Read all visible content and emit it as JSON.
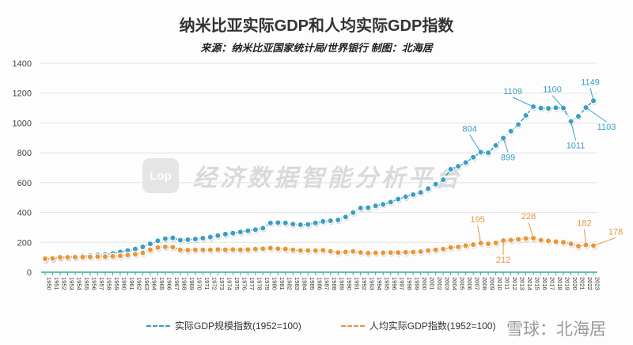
{
  "chart_data": {
    "type": "line",
    "title": "纳米比亚实际GDP和人均实际GDP指数",
    "subtitle": "来源：纳米比亚国家统计局/世界银行 制图：北海居",
    "xlabel": "",
    "ylabel": "",
    "ylim": [
      0,
      1400
    ],
    "yticks": [
      "0",
      "200",
      "400",
      "600",
      "800",
      "1000",
      "1200",
      "1400"
    ],
    "grid": true,
    "legend_position": "bottom",
    "x": [
      1950,
      1951,
      1952,
      1953,
      1954,
      1955,
      1956,
      1957,
      1958,
      1959,
      1960,
      1961,
      1962,
      1963,
      1964,
      1965,
      1966,
      1967,
      1968,
      1969,
      1970,
      1971,
      1972,
      1973,
      1974,
      1975,
      1976,
      1977,
      1978,
      1979,
      1980,
      1981,
      1982,
      1983,
      1984,
      1985,
      1986,
      1987,
      1988,
      1989,
      1990,
      1991,
      1992,
      1993,
      1994,
      1995,
      1996,
      1997,
      1998,
      1999,
      2000,
      2001,
      2002,
      2003,
      2004,
      2005,
      2006,
      2007,
      2008,
      2009,
      2010,
      2011,
      2012,
      2013,
      2014,
      2015,
      2016,
      2017,
      2018,
      2019,
      2020,
      2021,
      2022,
      2023
    ],
    "series": [
      {
        "name": "实际GDP规模指数(1952=100)",
        "color": "#3a9ec4",
        "values": [
          85,
          92,
          100,
          103,
          106,
          110,
          113,
          116,
          118,
          125,
          135,
          145,
          155,
          170,
          190,
          210,
          225,
          230,
          215,
          218,
          222,
          228,
          235,
          245,
          255,
          262,
          270,
          278,
          285,
          295,
          330,
          332,
          330,
          322,
          318,
          320,
          330,
          340,
          345,
          350,
          370,
          400,
          430,
          432,
          445,
          455,
          470,
          490,
          505,
          520,
          535,
          560,
          590,
          620,
          690,
          710,
          735,
          770,
          804,
          800,
          850,
          899,
          945,
          990,
          1050,
          1109,
          1100,
          1098,
          1102,
          1100,
          1011,
          1045,
          1103,
          1149
        ]
      },
      {
        "name": "人均实际GDP指数(1952=100)",
        "color": "#e8963a",
        "values": [
          90,
          92,
          100,
          100,
          101,
          102,
          103,
          104,
          105,
          107,
          110,
          115,
          120,
          130,
          150,
          165,
          170,
          168,
          150,
          148,
          150,
          150,
          150,
          152,
          150,
          152,
          150,
          152,
          155,
          158,
          162,
          158,
          155,
          150,
          145,
          145,
          145,
          147,
          140,
          132,
          135,
          140,
          132,
          128,
          130,
          130,
          132,
          132,
          133,
          135,
          138,
          145,
          150,
          155,
          165,
          170,
          178,
          185,
          195,
          190,
          196,
          212,
          215,
          220,
          226,
          228,
          215,
          210,
          205,
          200,
          190,
          175,
          182,
          178
        ]
      }
    ],
    "annotations": [
      {
        "series": 0,
        "year": 2008,
        "label": "804"
      },
      {
        "series": 0,
        "year": 2011,
        "label": "899"
      },
      {
        "series": 0,
        "year": 2015,
        "label": "1109"
      },
      {
        "series": 0,
        "year": 2019,
        "label": "1100"
      },
      {
        "series": 0,
        "year": 2020,
        "label": "1011"
      },
      {
        "series": 0,
        "year": 2022,
        "label": "1103"
      },
      {
        "series": 0,
        "year": 2023,
        "label": "1149"
      },
      {
        "series": 1,
        "year": 2008,
        "label": "195"
      },
      {
        "series": 1,
        "year": 2011,
        "label": "212"
      },
      {
        "series": 1,
        "year": 2015,
        "label": "228"
      },
      {
        "series": 1,
        "year": 2022,
        "label": "182"
      },
      {
        "series": 1,
        "year": 2023,
        "label": "178"
      }
    ]
  },
  "watermark": {
    "logo": "Lop",
    "text": "经济数据智能分析平台"
  },
  "source_mark": "雪球：北海居"
}
